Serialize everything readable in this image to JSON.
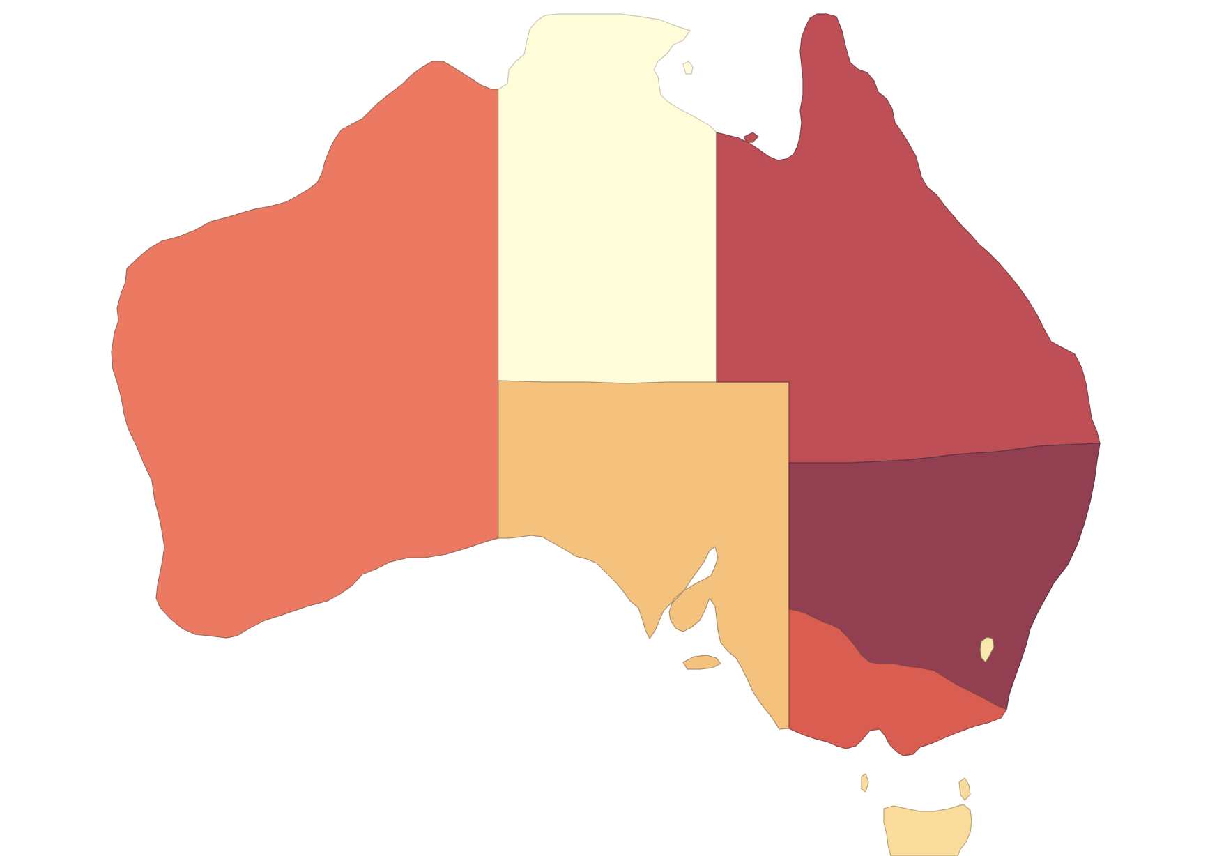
{
  "map": {
    "type": "choropleth",
    "country": "Australia",
    "regions": [
      {
        "id": "wa",
        "color": "#EC7A62",
        "stroke": "#9a6a5e"
      },
      {
        "id": "nt",
        "color": "#FFFDD9",
        "stroke": "#c8c8b0"
      },
      {
        "id": "sa",
        "color": "#F5C27E",
        "stroke": "#a89070"
      },
      {
        "id": "qld",
        "color": "#BE4F56",
        "stroke": "#7a4448"
      },
      {
        "id": "nsw",
        "color": "#923F51",
        "stroke": "#5e3440"
      },
      {
        "id": "vic",
        "color": "#DA5D52",
        "stroke": "#8a4a44"
      },
      {
        "id": "tas",
        "color": "#F9DC9B",
        "stroke": "#b8a57a"
      },
      {
        "id": "act",
        "color": "#FBEAAE",
        "stroke": "#8a7a5a"
      }
    ]
  }
}
